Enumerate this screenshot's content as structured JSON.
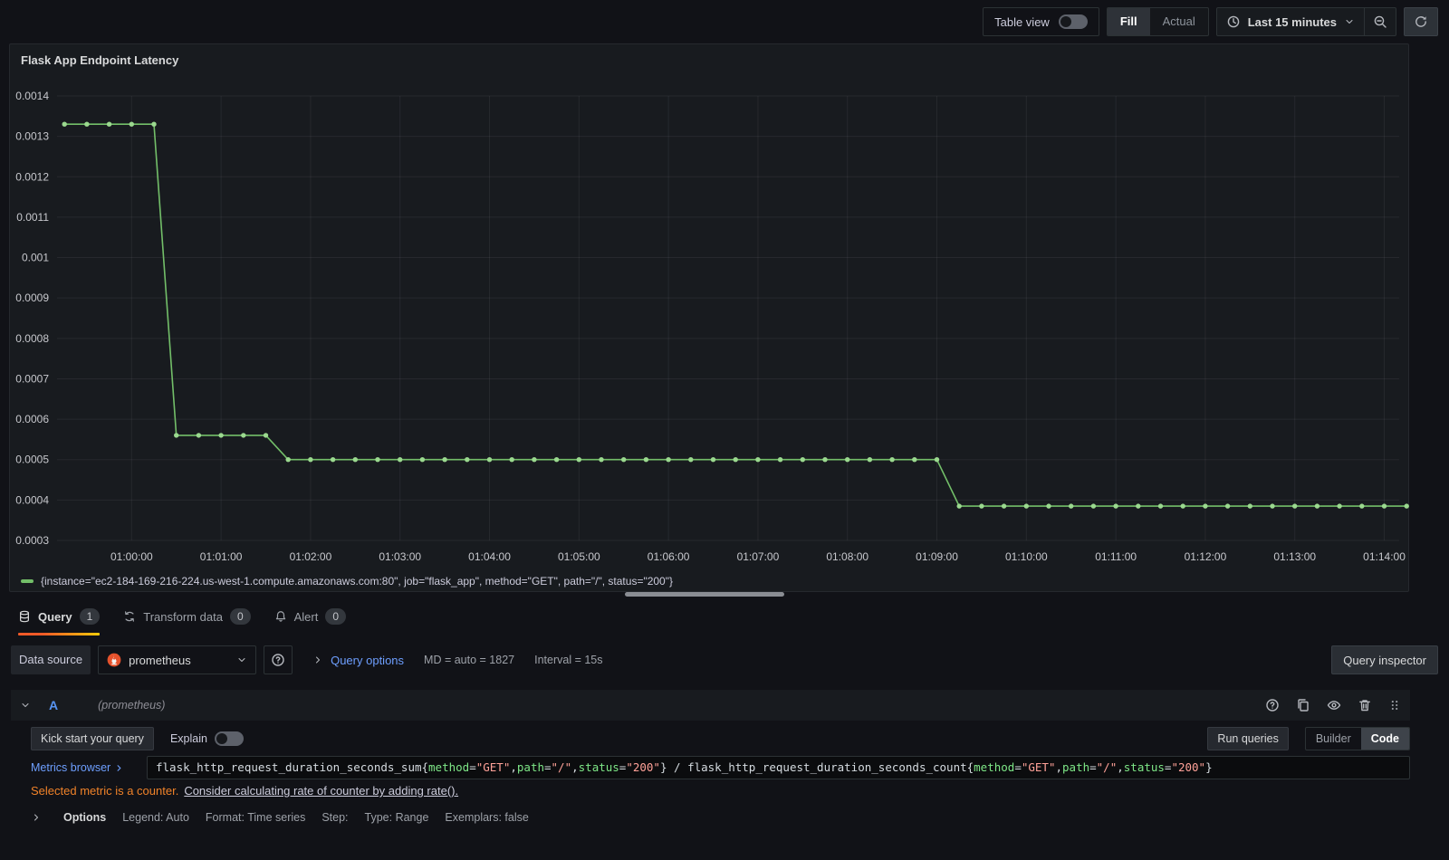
{
  "toolbar": {
    "table_view_label": "Table view",
    "fill_label": "Fill",
    "actual_label": "Actual",
    "time_range_label": "Last 15 minutes"
  },
  "panel": {
    "title": "Flask App Endpoint Latency",
    "legend": "{instance=\"ec2-184-169-216-224.us-west-1.compute.amazonaws.com:80\", job=\"flask_app\", method=\"GET\", path=\"/\", status=\"200\"}"
  },
  "chart_data": {
    "type": "line",
    "title": "Flask App Endpoint Latency",
    "series_name": "{instance=\"ec2-184-169-216-224.us-west-1.compute.amazonaws.com:80\", job=\"flask_app\", method=\"GET\", path=\"/\", status=\"200\"}",
    "line_color": "#73bf69",
    "grid": true,
    "legend_position": "bottom-left",
    "ylim": [
      0.0003,
      0.0014
    ],
    "y_ticks": [
      0.0003,
      0.0004,
      0.0005,
      0.0006,
      0.0007,
      0.0008,
      0.0009,
      0.001,
      0.0011,
      0.0012,
      0.0013,
      0.0014
    ],
    "x_ticks": [
      "01:00:00",
      "01:01:00",
      "01:02:00",
      "01:03:00",
      "01:04:00",
      "01:05:00",
      "01:06:00",
      "01:07:00",
      "01:08:00",
      "01:09:00",
      "01:10:00",
      "01:11:00",
      "01:12:00",
      "01:13:00",
      "01:14:00"
    ],
    "x_window": [
      "00:59:10",
      "01:14:10"
    ],
    "points": [
      [
        "00:59:15",
        0.00133
      ],
      [
        "00:59:30",
        0.00133
      ],
      [
        "00:59:45",
        0.00133
      ],
      [
        "01:00:00",
        0.00133
      ],
      [
        "01:00:15",
        0.00133
      ],
      [
        "01:00:30",
        0.00056
      ],
      [
        "01:00:45",
        0.00056
      ],
      [
        "01:01:00",
        0.00056
      ],
      [
        "01:01:15",
        0.00056
      ],
      [
        "01:01:30",
        0.00056
      ],
      [
        "01:01:45",
        0.0005
      ],
      [
        "01:02:00",
        0.0005
      ],
      [
        "01:02:15",
        0.0005
      ],
      [
        "01:02:30",
        0.0005
      ],
      [
        "01:02:45",
        0.0005
      ],
      [
        "01:03:00",
        0.0005
      ],
      [
        "01:03:15",
        0.0005
      ],
      [
        "01:03:30",
        0.0005
      ],
      [
        "01:03:45",
        0.0005
      ],
      [
        "01:04:00",
        0.0005
      ],
      [
        "01:04:15",
        0.0005
      ],
      [
        "01:04:30",
        0.0005
      ],
      [
        "01:04:45",
        0.0005
      ],
      [
        "01:05:00",
        0.0005
      ],
      [
        "01:05:15",
        0.0005
      ],
      [
        "01:05:30",
        0.0005
      ],
      [
        "01:05:45",
        0.0005
      ],
      [
        "01:06:00",
        0.0005
      ],
      [
        "01:06:15",
        0.0005
      ],
      [
        "01:06:30",
        0.0005
      ],
      [
        "01:06:45",
        0.0005
      ],
      [
        "01:07:00",
        0.0005
      ],
      [
        "01:07:15",
        0.0005
      ],
      [
        "01:07:30",
        0.0005
      ],
      [
        "01:07:45",
        0.0005
      ],
      [
        "01:08:00",
        0.0005
      ],
      [
        "01:08:15",
        0.0005
      ],
      [
        "01:08:30",
        0.0005
      ],
      [
        "01:08:45",
        0.0005
      ],
      [
        "01:09:00",
        0.0005
      ],
      [
        "01:09:15",
        0.000385
      ],
      [
        "01:09:30",
        0.000385
      ],
      [
        "01:09:45",
        0.000385
      ],
      [
        "01:10:00",
        0.000385
      ],
      [
        "01:10:15",
        0.000385
      ],
      [
        "01:10:30",
        0.000385
      ],
      [
        "01:10:45",
        0.000385
      ],
      [
        "01:11:00",
        0.000385
      ],
      [
        "01:11:15",
        0.000385
      ],
      [
        "01:11:30",
        0.000385
      ],
      [
        "01:11:45",
        0.000385
      ],
      [
        "01:12:00",
        0.000385
      ],
      [
        "01:12:15",
        0.000385
      ],
      [
        "01:12:30",
        0.000385
      ],
      [
        "01:12:45",
        0.000385
      ],
      [
        "01:13:00",
        0.000385
      ],
      [
        "01:13:15",
        0.000385
      ],
      [
        "01:13:30",
        0.000385
      ],
      [
        "01:13:45",
        0.000385
      ],
      [
        "01:14:00",
        0.000385
      ],
      [
        "01:14:15",
        0.000385
      ]
    ]
  },
  "tabs": [
    {
      "label": "Query",
      "count": "1"
    },
    {
      "label": "Transform data",
      "count": "0"
    },
    {
      "label": "Alert",
      "count": "0"
    }
  ],
  "datasource_row": {
    "label": "Data source",
    "value": "prometheus",
    "query_options_label": "Query options",
    "md_text": "MD = auto = 1827",
    "interval_text": "Interval = 15s",
    "query_inspector_label": "Query inspector"
  },
  "query_row": {
    "ref_id": "A",
    "datasource_hint": "(prometheus)"
  },
  "editor": {
    "kick_start_label": "Kick start your query",
    "explain_label": "Explain",
    "run_queries_label": "Run queries",
    "builder_label": "Builder",
    "code_label": "Code",
    "metrics_browser_label": "Metrics browser",
    "query_tokens": [
      {
        "t": "flask_http_request_duration_seconds_sum{",
        "c": "plain"
      },
      {
        "t": "method",
        "c": "label"
      },
      {
        "t": "=",
        "c": "plain"
      },
      {
        "t": "\"GET\"",
        "c": "string"
      },
      {
        "t": ",",
        "c": "plain"
      },
      {
        "t": "path",
        "c": "label"
      },
      {
        "t": "=",
        "c": "plain"
      },
      {
        "t": "\"/\"",
        "c": "string"
      },
      {
        "t": ",",
        "c": "plain"
      },
      {
        "t": "status",
        "c": "label"
      },
      {
        "t": "=",
        "c": "plain"
      },
      {
        "t": "\"200\"",
        "c": "string"
      },
      {
        "t": "} / flask_http_request_duration_seconds_count{",
        "c": "plain"
      },
      {
        "t": "method",
        "c": "label"
      },
      {
        "t": "=",
        "c": "plain"
      },
      {
        "t": "\"GET\"",
        "c": "string"
      },
      {
        "t": ",",
        "c": "plain"
      },
      {
        "t": "path",
        "c": "label"
      },
      {
        "t": "=",
        "c": "plain"
      },
      {
        "t": "\"/\"",
        "c": "string"
      },
      {
        "t": ",",
        "c": "plain"
      },
      {
        "t": "status",
        "c": "label"
      },
      {
        "t": "=",
        "c": "plain"
      },
      {
        "t": "\"200\"",
        "c": "string"
      },
      {
        "t": "}",
        "c": "plain"
      }
    ],
    "warning_text": "Selected metric is a counter.",
    "warning_link": "Consider calculating rate of counter by adding rate().",
    "options_label": "Options",
    "options_summary": [
      "Legend: Auto",
      "Format: Time series",
      "Step:",
      "Type: Range",
      "Exemplars: false"
    ]
  },
  "colors": {
    "series_green": "#73bf69",
    "accent_orange": "#ff780a",
    "link_blue": "#6e9fff",
    "ref_blue": "#5794f2",
    "warning_orange": "#f08229",
    "prometheus_orange": "#e6522c",
    "label_green": "#7ee787",
    "string_salmon": "#ffa198"
  }
}
